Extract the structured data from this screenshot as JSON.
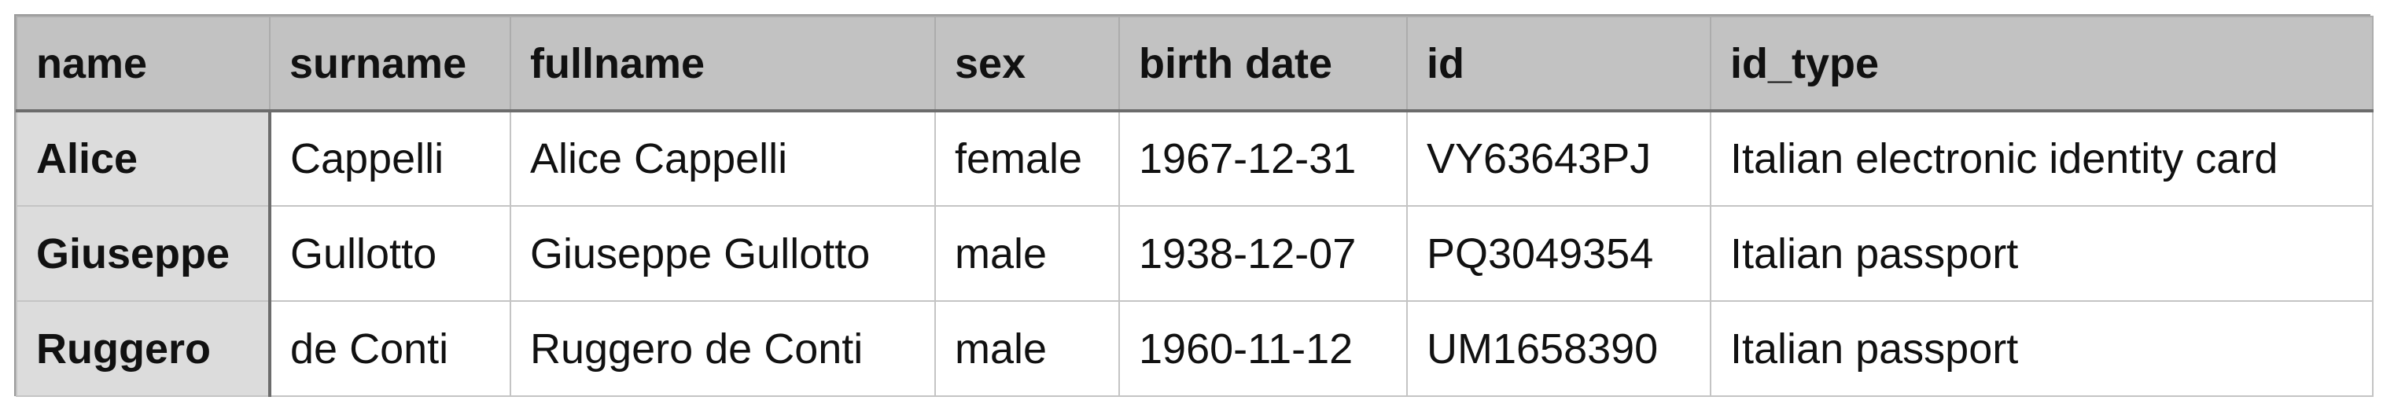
{
  "table": {
    "columns": [
      "name",
      "surname",
      "fullname",
      "sex",
      "birth date",
      "id",
      "id_type"
    ],
    "rows": [
      [
        "Alice",
        "Cappelli",
        "Alice Cappelli",
        "female",
        "1967-12-31",
        "VY63643PJ",
        "Italian electronic identity card"
      ],
      [
        "Giuseppe",
        "Gullotto",
        "Giuseppe Gullotto",
        "male",
        "1938-12-07",
        "PQ3049354",
        "Italian passport"
      ],
      [
        "Ruggero",
        "de Conti",
        "Ruggero de Conti",
        "male",
        "1960-11-12",
        "UM1658390",
        "Italian passport"
      ]
    ]
  }
}
